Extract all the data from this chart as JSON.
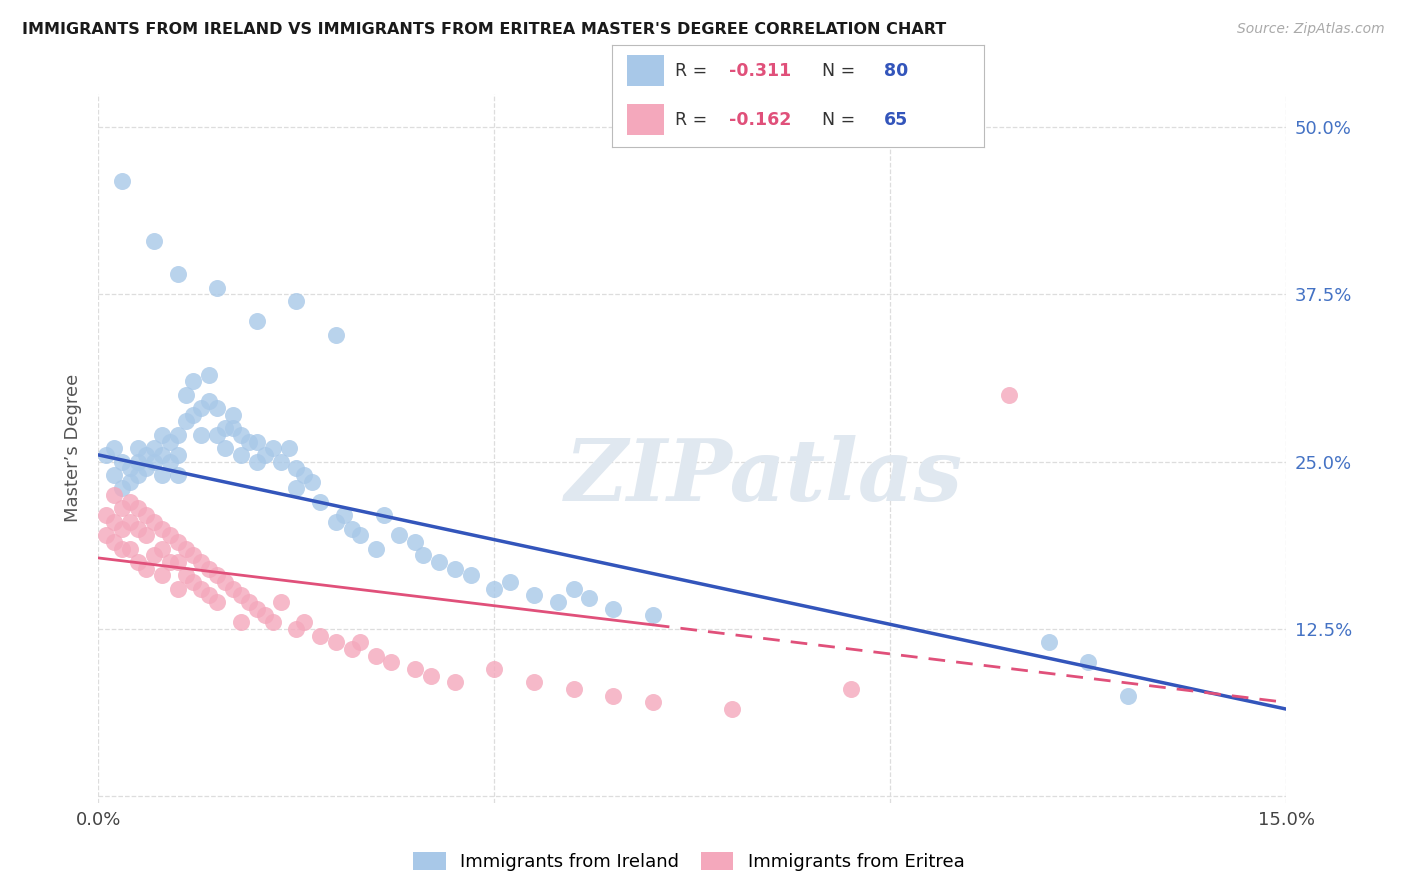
{
  "title": "IMMIGRANTS FROM IRELAND VS IMMIGRANTS FROM ERITREA MASTER'S DEGREE CORRELATION CHART",
  "source": "Source: ZipAtlas.com",
  "ylabel": "Master’s Degree",
  "xlim": [
    0.0,
    0.15
  ],
  "ylim": [
    -0.005,
    0.525
  ],
  "yticks": [
    0.0,
    0.125,
    0.25,
    0.375,
    0.5
  ],
  "ytick_labels": [
    "",
    "12.5%",
    "25.0%",
    "37.5%",
    "50.0%"
  ],
  "xticks": [
    0.0,
    0.05,
    0.1,
    0.15
  ],
  "xtick_labels": [
    "0.0%",
    "",
    "",
    "15.0%"
  ],
  "grid_color": "#dddddd",
  "background_color": "#ffffff",
  "ireland_color": "#a8c8e8",
  "eritrea_color": "#f4a8bc",
  "ireland_line_color": "#3355bb",
  "eritrea_line_color": "#e0507a",
  "legend_R_color": "#e0507a",
  "legend_N_color": "#3355bb",
  "watermark": "ZIPatlas",
  "watermark_color": "#e0e8f0",
  "ireland_label": "Immigrants from Ireland",
  "eritrea_label": "Immigrants from Eritrea",
  "ireland_R": "-0.311",
  "ireland_N": "80",
  "eritrea_R": "-0.162",
  "eritrea_N": "65",
  "ireland_line_x0": 0.0,
  "ireland_line_y0": 0.255,
  "ireland_line_x1": 0.15,
  "ireland_line_y1": 0.065,
  "eritrea_line_solid_x0": 0.0,
  "eritrea_line_solid_y0": 0.178,
  "eritrea_line_solid_x1": 0.07,
  "eritrea_line_solid_y1": 0.128,
  "eritrea_line_dash_x0": 0.07,
  "eritrea_line_dash_y0": 0.128,
  "eritrea_line_dash_x1": 0.15,
  "eritrea_line_dash_y1": 0.07
}
